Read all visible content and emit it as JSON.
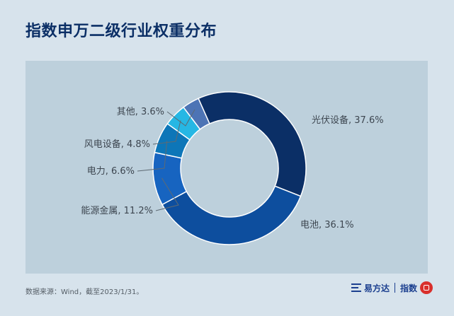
{
  "page": {
    "title": "指数申万二级行业权重分布",
    "source_note": "数据来源：Wind，截至2023/1/31。",
    "brand_name": "易方达",
    "brand_product": "指数"
  },
  "chart_data": {
    "type": "pie",
    "variant": "donut",
    "title": "指数申万二级行业权重分布",
    "legend": "none",
    "unit": "%",
    "categories": [
      "光伏设备",
      "电池",
      "能源金属",
      "电力",
      "风电设备",
      "其他"
    ],
    "values": [
      37.6,
      36.1,
      11.2,
      6.6,
      4.8,
      3.6
    ],
    "labels": [
      "光伏设备, 37.6%",
      "电池, 36.1%",
      "能源金属, 11.2%",
      "电力, 6.6%",
      "风电设备, 4.8%",
      "其他, 3.6%"
    ],
    "colors": [
      "#0b2f66",
      "#0d4e9e",
      "#1764c0",
      "#0d76b8",
      "#26b7e4",
      "#4d74b5"
    ],
    "start_angle_deg": -24
  }
}
